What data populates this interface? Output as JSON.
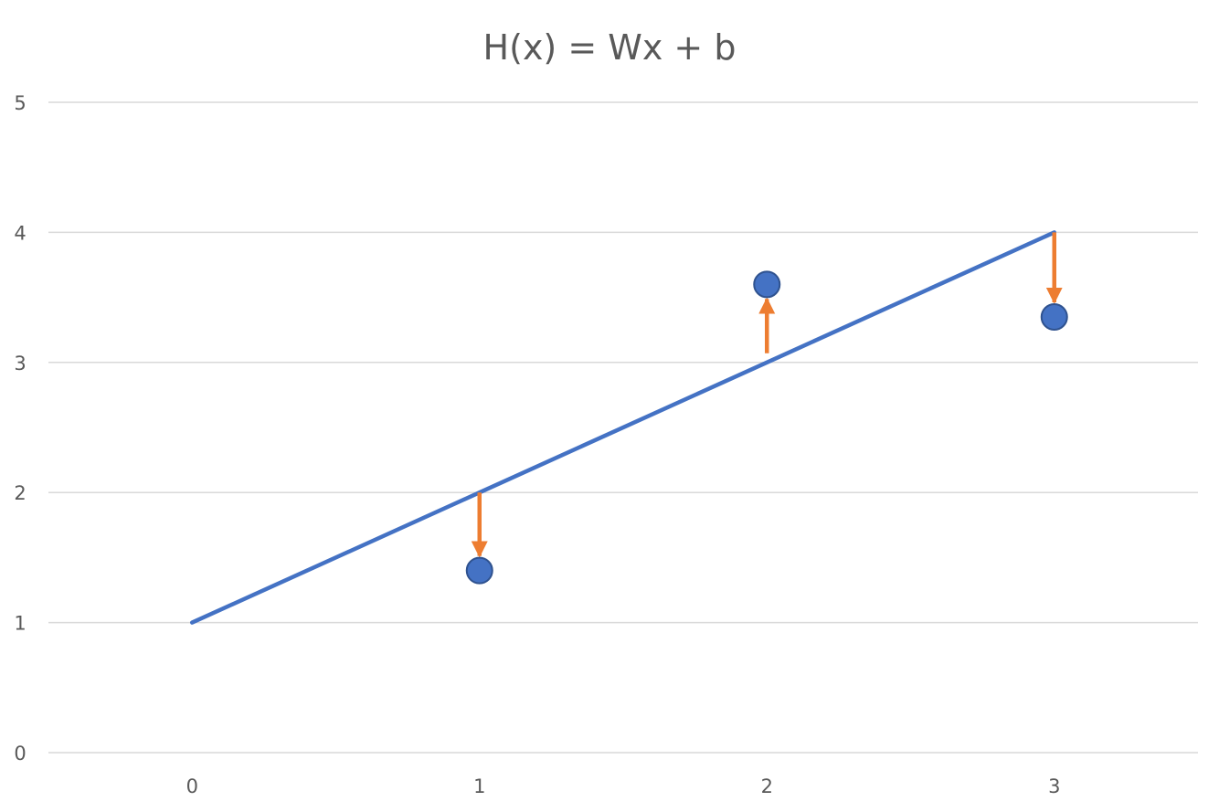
{
  "chart_data": {
    "type": "line",
    "title": "H(x) = Wx + b",
    "xlabel": "",
    "ylabel": "",
    "xlim": [
      -0.5,
      3.5
    ],
    "ylim": [
      0,
      5
    ],
    "x_ticks": [
      0,
      1,
      2,
      3
    ],
    "y_ticks": [
      0,
      1,
      2,
      3,
      4,
      5
    ],
    "grid": "horizontal",
    "legend": "none",
    "hypothesis_line": {
      "x": [
        0,
        1,
        2,
        3
      ],
      "y": [
        1,
        2,
        3,
        4
      ],
      "color": "#4472C4"
    },
    "data_points": {
      "x": [
        1,
        2,
        3
      ],
      "y": [
        1.4,
        3.6,
        3.35
      ],
      "color": "#4472C4"
    },
    "error_arrows": {
      "color": "#ED7D31",
      "items": [
        {
          "x": 1,
          "from_y": 2,
          "to_y": 1.4
        },
        {
          "x": 2,
          "from_y": 3,
          "to_y": 3.6
        },
        {
          "x": 3,
          "from_y": 4,
          "to_y": 3.35
        }
      ]
    }
  }
}
